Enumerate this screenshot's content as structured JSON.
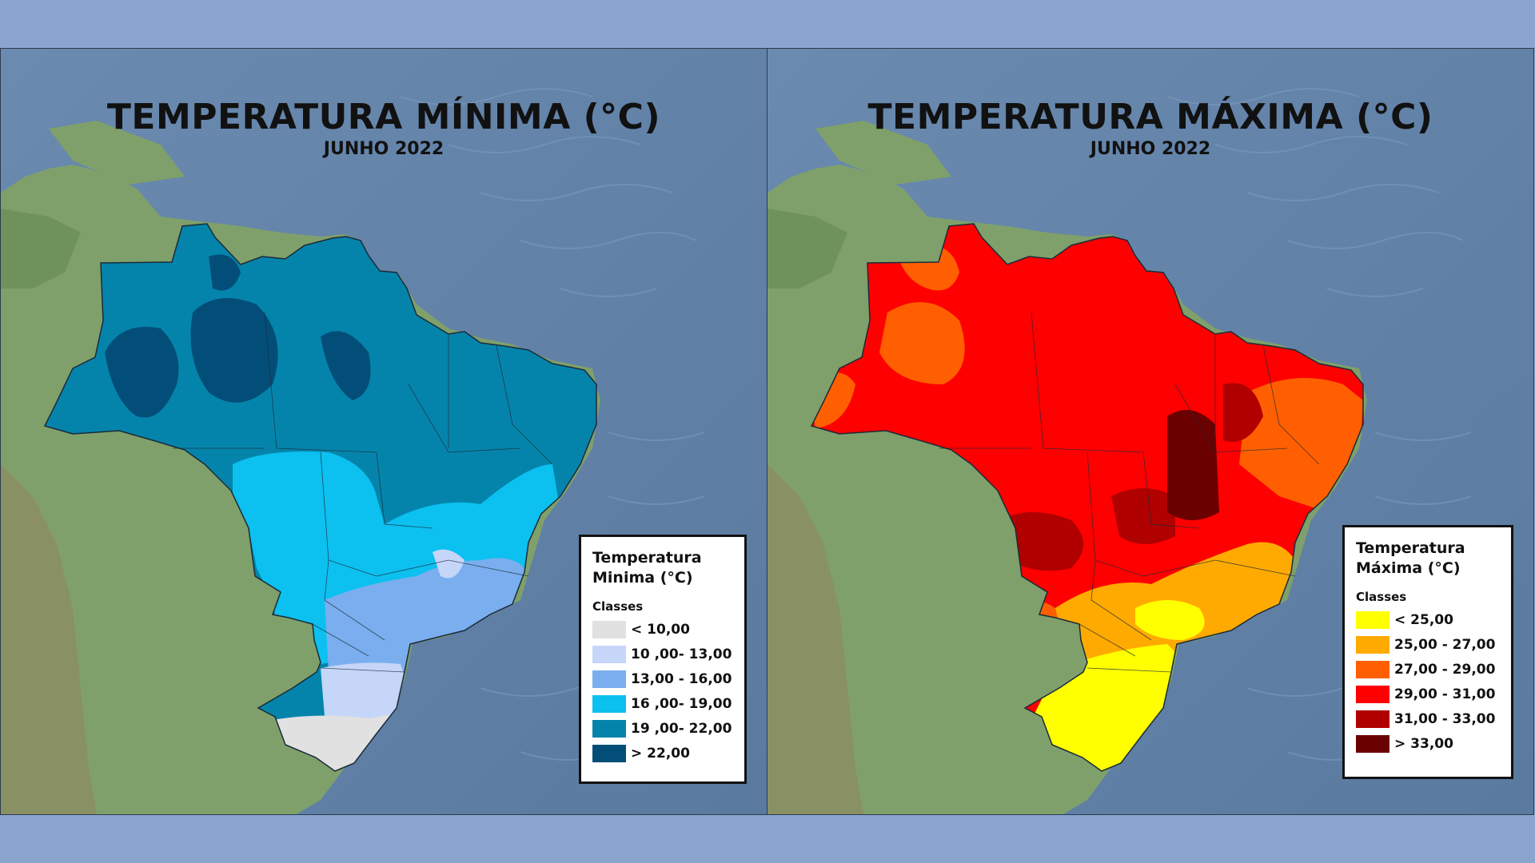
{
  "maps": [
    {
      "title": "TEMPERATURA MÍNIMA (°C)",
      "subtitle": "JUNHO 2022",
      "legend": {
        "title": "Temperatura Minima (°C)",
        "classes_label": "Classes",
        "items": [
          {
            "label": "< 10,00",
            "color": "#e1e1e1"
          },
          {
            "label": "10 ,00- 13,00",
            "color": "#c5d6f9"
          },
          {
            "label": "13,00 - 16,00",
            "color": "#7aaeee"
          },
          {
            "label": "16 ,00- 19,00",
            "color": "#0cc0f0"
          },
          {
            "label": "19 ,00- 22,00",
            "color": "#0584ab"
          },
          {
            "label": "> 22,00",
            "color": "#034e78"
          }
        ]
      }
    },
    {
      "title": "TEMPERATURA MÁXIMA (°C)",
      "subtitle": "JUNHO 2022",
      "legend": {
        "title": "Temperatura Máxima (°C)",
        "classes_label": "Classes",
        "items": [
          {
            "label": "< 25,00",
            "color": "#ffff00"
          },
          {
            "label": "25,00 - 27,00",
            "color": "#ffaa00"
          },
          {
            "label": "27,00 - 29,00",
            "color": "#ff5f00"
          },
          {
            "label": "29,00 - 31,00",
            "color": "#ff0000"
          },
          {
            "label": "31,00 - 33,00",
            "color": "#b00000"
          },
          {
            "label": "> 33,00",
            "color": "#6b0000"
          }
        ]
      }
    }
  ],
  "colors": {
    "ocean": "#5d7fa6",
    "land": "#7fa06a",
    "page_background": "#8aa6cf"
  }
}
